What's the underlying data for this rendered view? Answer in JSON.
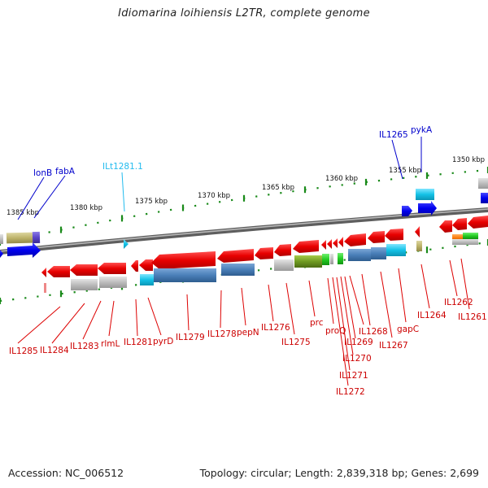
{
  "title": "Idiomarina loihiensis L2TR, complete genome",
  "footer": {
    "accession": "Accession: NC_006512",
    "topology": "Topology: circular; Length: 2,839,318 bp; Genes: 2,699"
  },
  "colors": {
    "forward_strand_gene": "#0000ee",
    "reverse_strand_gene": "#ee0000",
    "trna_gene": "#22bbee",
    "backbone": "#888888",
    "scale_ticks": "#1a8a1a"
  },
  "scale_labels": [
    "1385 kbp",
    "1380 kbp",
    "1375 kbp",
    "1370 kbp",
    "1365 kbp",
    "1360 kbp",
    "1355 kbp",
    "1350 kbp"
  ],
  "top_gene_labels": [
    "lonB",
    "fabA",
    "ILt1281.1",
    "IL1265",
    "pykA"
  ],
  "bottom_gene_labels": [
    "IL1285",
    "IL1284",
    "IL1283",
    "rlmL",
    "IL1281",
    "pyrD",
    "IL1279",
    "IL1278",
    "pepN",
    "IL1276",
    "IL1275",
    "prc",
    "proQ",
    "IL1269",
    "IL1270",
    "IL1271",
    "IL1272",
    "IL1268",
    "IL1267",
    "gapC",
    "IL1264",
    "IL1262",
    "IL1261"
  ]
}
